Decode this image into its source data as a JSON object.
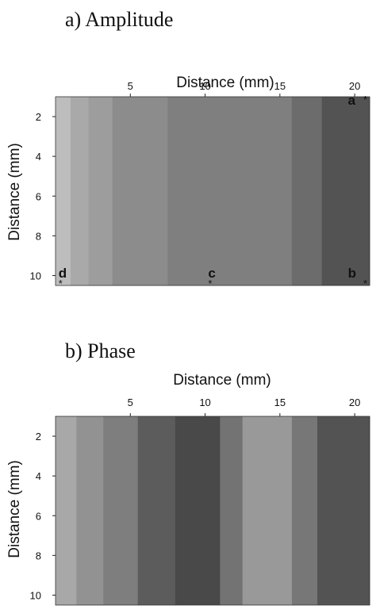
{
  "chart_data": [
    {
      "type": "heatmap",
      "title": "a) Amplitude",
      "xlabel": "Distance (mm)",
      "ylabel": "Distance (mm)",
      "xlim": [
        0,
        21
      ],
      "ylim": [
        1,
        10.5
      ],
      "x_ticks": [
        5,
        10,
        15,
        20
      ],
      "y_ticks": [
        2,
        4,
        6,
        8,
        10
      ],
      "colormap": "grayscale (light = high, dark = low)",
      "bands": [
        {
          "x_from": 0.0,
          "x_to": 1.0,
          "color": "#bdbdbd"
        },
        {
          "x_from": 1.0,
          "x_to": 2.2,
          "color": "#a9a9a9"
        },
        {
          "x_from": 2.2,
          "x_to": 3.8,
          "color": "#9d9d9d"
        },
        {
          "x_from": 3.8,
          "x_to": 7.5,
          "color": "#8c8c8c"
        },
        {
          "x_from": 7.5,
          "x_to": 15.8,
          "color": "#7f7f7f"
        },
        {
          "x_from": 15.8,
          "x_to": 17.8,
          "color": "#6c6c6c"
        },
        {
          "x_from": 17.8,
          "x_to": 21.0,
          "color": "#535353"
        }
      ],
      "markers": [
        {
          "label": "a",
          "x": 20.5,
          "y": 1.4
        },
        {
          "label": "b",
          "x": 20.5,
          "y": 10.1
        },
        {
          "label": "c",
          "x": 10.2,
          "y": 10.1
        },
        {
          "label": "d",
          "x": 0.2,
          "y": 10.1
        }
      ],
      "marker_symbol": "*"
    },
    {
      "type": "heatmap",
      "title": "b) Phase",
      "xlabel": "Distance (mm)",
      "ylabel": "Distance (mm)",
      "xlim": [
        0,
        21
      ],
      "ylim": [
        1,
        10.5
      ],
      "x_ticks": [
        5,
        10,
        15,
        20
      ],
      "y_ticks": [
        2,
        4,
        6,
        8,
        10
      ],
      "colormap": "grayscale (light = high, dark = low)",
      "bands": [
        {
          "x_from": 0.0,
          "x_to": 1.4,
          "color": "#a8a8a8"
        },
        {
          "x_from": 1.4,
          "x_to": 3.2,
          "color": "#929292"
        },
        {
          "x_from": 3.2,
          "x_to": 5.5,
          "color": "#7e7e7e"
        },
        {
          "x_from": 5.5,
          "x_to": 8.0,
          "color": "#5c5c5c"
        },
        {
          "x_from": 8.0,
          "x_to": 11.0,
          "color": "#494949"
        },
        {
          "x_from": 11.0,
          "x_to": 12.5,
          "color": "#737373"
        },
        {
          "x_from": 12.5,
          "x_to": 15.8,
          "color": "#999999"
        },
        {
          "x_from": 15.8,
          "x_to": 17.5,
          "color": "#777777"
        },
        {
          "x_from": 17.5,
          "x_to": 21.0,
          "color": "#535353"
        }
      ]
    }
  ]
}
